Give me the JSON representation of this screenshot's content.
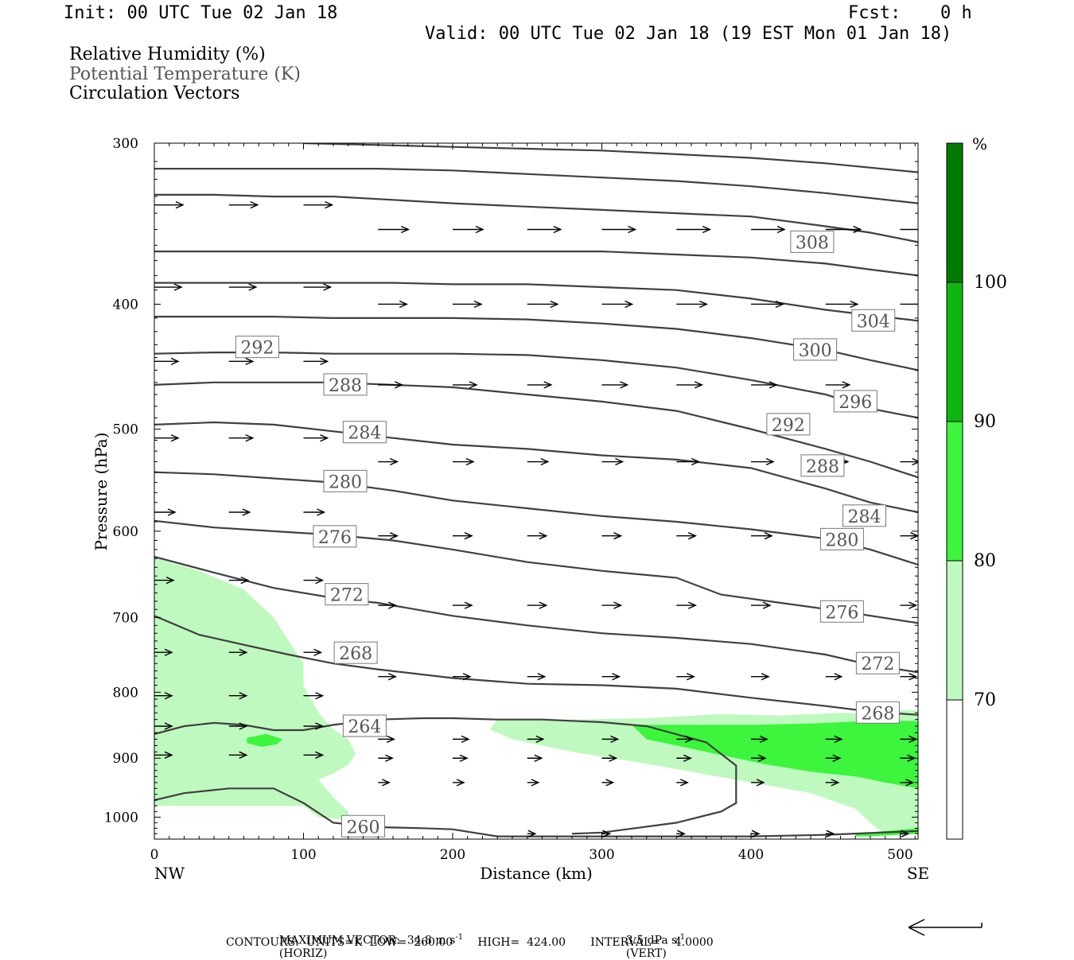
{
  "header": {
    "init": "Init: 00 UTC Tue 02 Jan 18",
    "fcst_label": "Fcst:",
    "fcst_value": "0 h",
    "valid": "Valid: 00 UTC Tue 02 Jan 18 (19 EST Mon 01 Jan 18)"
  },
  "fields": {
    "rh": "Relative Humidity (%)",
    "theta": "Potential Temperature (K)",
    "vectors": "Circulation Vectors"
  },
  "colors": {
    "rh_70_80": "#bff9bf",
    "rh_80_90": "#3cf53c",
    "rh_90_100": "#0fb60f",
    "rh_100_plus": "#007a00",
    "contour": "#404040",
    "vector": "#000000"
  },
  "chart_data": {
    "type": "cross-section",
    "xlabel": "Distance (km)",
    "ylabel": "Pressure (hPa)",
    "x_ticks": [
      0,
      100,
      200,
      300,
      400,
      500
    ],
    "y_ticks": [
      300,
      400,
      500,
      600,
      700,
      800,
      900,
      1000
    ],
    "xlim": [
      0,
      512
    ],
    "ylim": [
      300,
      1040
    ],
    "y_scale": "log",
    "x_end_labels": {
      "left": "NW",
      "right": "SE"
    },
    "colorbar": {
      "unit": "%",
      "levels": [
        70,
        80,
        90,
        100
      ],
      "level_labels": [
        "70",
        "80",
        "90",
        "100"
      ]
    },
    "theta_contours": [
      {
        "label": "260",
        "x": [
          0,
          20,
          50,
          80,
          100,
          120,
          150,
          180,
          200,
          230,
          260,
          300,
          350,
          400,
          450,
          512
        ],
        "p": [
          970,
          958,
          950,
          950,
          975,
          1010,
          1018,
          1020,
          1022,
          1035,
          1035,
          1035,
          1035,
          1035,
          1032,
          1025
        ]
      },
      {
        "label": "264",
        "x": [
          0,
          20,
          40,
          60,
          80,
          100,
          120,
          150,
          180,
          200,
          230,
          260,
          300,
          330,
          370,
          390,
          390,
          380,
          350,
          300,
          280
        ],
        "p": [
          862,
          850,
          845,
          848,
          856,
          856,
          848,
          840,
          838,
          838,
          840,
          840,
          844,
          850,
          875,
          912,
          975,
          990,
          1010,
          1028,
          1030
        ]
      },
      {
        "label": "268",
        "x": [
          0,
          30,
          60,
          90,
          120,
          150,
          200,
          250,
          300,
          350,
          400,
          450,
          480,
          512
        ],
        "p": [
          698,
          722,
          735,
          748,
          760,
          768,
          780,
          788,
          790,
          795,
          808,
          820,
          828,
          833
        ]
      },
      {
        "label": "272",
        "x": [
          0,
          40,
          80,
          120,
          150,
          200,
          250,
          300,
          350,
          400,
          450,
          480,
          512
        ],
        "p": [
          628,
          646,
          664,
          676,
          682,
          698,
          710,
          720,
          726,
          734,
          748,
          762,
          772
        ]
      },
      {
        "label": "276",
        "x": [
          0,
          40,
          80,
          120,
          160,
          200,
          250,
          300,
          350,
          380,
          420,
          460,
          512
        ],
        "p": [
          589,
          596,
          600,
          604,
          610,
          620,
          634,
          644,
          652,
          672,
          682,
          692,
          707
        ]
      },
      {
        "label": "280",
        "x": [
          0,
          40,
          80,
          120,
          160,
          200,
          250,
          300,
          350,
          400,
          450,
          480,
          512
        ],
        "p": [
          540,
          542,
          546,
          550,
          558,
          568,
          576,
          584,
          590,
          598,
          608,
          620,
          637
        ]
      },
      {
        "label": "284",
        "x": [
          0,
          40,
          80,
          120,
          160,
          200,
          250,
          300,
          350,
          400,
          450,
          480,
          512
        ],
        "p": [
          496,
          494,
          496,
          502,
          508,
          514,
          518,
          524,
          528,
          536,
          556,
          570,
          580
        ]
      },
      {
        "label": "288",
        "x": [
          0,
          40,
          80,
          120,
          160,
          200,
          250,
          300,
          350,
          400,
          450,
          480,
          512
        ],
        "p": [
          462,
          460,
          460,
          460,
          462,
          464,
          470,
          476,
          484,
          500,
          518,
          530,
          545
        ]
      },
      {
        "label": "292",
        "x": [
          0,
          40,
          80,
          120,
          160,
          200,
          250,
          300,
          350,
          400,
          450,
          480,
          512
        ],
        "p": [
          437,
          436,
          436,
          437,
          437,
          437,
          438,
          442,
          448,
          458,
          470,
          482,
          490
        ]
      },
      {
        "label": "296",
        "x": [
          0,
          40,
          80,
          120,
          160,
          200,
          250,
          300,
          350,
          400,
          450,
          480,
          512
        ],
        "p": [
          409,
          409,
          409,
          410,
          410,
          410,
          411,
          414,
          418,
          425,
          434,
          442,
          450
        ]
      },
      {
        "label": "300",
        "x": [
          0,
          40,
          80,
          120,
          160,
          200,
          250,
          300,
          350,
          400,
          450,
          480,
          512
        ],
        "p": [
          385,
          385,
          385,
          385,
          385,
          386,
          386,
          388,
          390,
          396,
          404,
          408,
          412
        ]
      },
      {
        "label": "304",
        "x": [
          0,
          40,
          80,
          120,
          160,
          200,
          250,
          300,
          350,
          400,
          450,
          480,
          512
        ],
        "p": [
          364,
          364,
          364,
          364,
          364,
          364,
          364,
          364,
          366,
          368,
          372,
          376,
          380
        ]
      },
      {
        "label": "308",
        "x": [
          0,
          40,
          80,
          120,
          160,
          200,
          250,
          300,
          350,
          400,
          450,
          480,
          512
        ],
        "p": [
          329,
          329,
          330,
          330,
          332,
          334,
          336,
          338,
          340,
          342,
          348,
          352,
          358
        ]
      },
      {
        "label": "",
        "x": [
          0,
          60,
          100,
          150,
          200,
          250,
          300,
          350,
          400,
          450,
          512
        ],
        "p": [
          314,
          314,
          314,
          314,
          315,
          317,
          319,
          321,
          324,
          328,
          334
        ]
      },
      {
        "label": "",
        "x": [
          100,
          150,
          200,
          250,
          300,
          350,
          400,
          450,
          512
        ],
        "p": [
          300,
          301,
          302,
          303,
          304,
          306,
          308,
          311,
          316
        ]
      }
    ],
    "theta_labels": [
      {
        "text": "308",
        "x": 441,
        "p": 358
      },
      {
        "text": "304",
        "x": 482,
        "p": 412
      },
      {
        "text": "300",
        "x": 443,
        "p": 434
      },
      {
        "text": "296",
        "x": 470,
        "p": 476
      },
      {
        "text": "292",
        "x": 69,
        "p": 432
      },
      {
        "text": "292",
        "x": 425,
        "p": 496
      },
      {
        "text": "288",
        "x": 128,
        "p": 462
      },
      {
        "text": "288",
        "x": 448,
        "p": 534
      },
      {
        "text": "284",
        "x": 141,
        "p": 503
      },
      {
        "text": "284",
        "x": 476,
        "p": 584
      },
      {
        "text": "280",
        "x": 128,
        "p": 549
      },
      {
        "text": "280",
        "x": 461,
        "p": 609
      },
      {
        "text": "276",
        "x": 121,
        "p": 606
      },
      {
        "text": "276",
        "x": 461,
        "p": 693
      },
      {
        "text": "272",
        "x": 129,
        "p": 672
      },
      {
        "text": "272",
        "x": 485,
        "p": 760
      },
      {
        "text": "268",
        "x": 135,
        "p": 746
      },
      {
        "text": "268",
        "x": 485,
        "p": 830
      },
      {
        "text": "264",
        "x": 141,
        "p": 850
      },
      {
        "text": "260",
        "x": 140,
        "p": 1017
      }
    ],
    "rh_regions": [
      {
        "band": "70-80",
        "x": [
          0,
          10,
          30,
          60,
          80,
          100,
          100,
          110,
          120,
          130,
          135,
          130,
          120,
          110,
          120,
          130,
          130,
          110,
          100,
          0
        ],
        "p": [
          628,
          634,
          644,
          666,
          700,
          760,
          790,
          830,
          855,
          870,
          893,
          910,
          925,
          935,
          965,
          990,
          1005,
          1000,
          980,
          980
        ]
      },
      {
        "band": "70-80",
        "x": [
          230,
          280,
          330,
          380,
          420,
          460,
          480,
          490,
          512,
          512,
          490,
          482,
          470,
          440,
          400,
          360,
          320,
          280,
          240,
          225
        ],
        "p": [
          840,
          840,
          838,
          832,
          834,
          830,
          832,
          826,
          826,
          1030,
          1030,
          1015,
          985,
          958,
          940,
          922,
          905,
          890,
          870,
          855
        ]
      },
      {
        "band": "80-90",
        "x": [
          320,
          360,
          400,
          440,
          480,
          512,
          512,
          490,
          470,
          440,
          410,
          380,
          350,
          330
        ],
        "p": [
          848,
          848,
          848,
          846,
          842,
          842,
          950,
          940,
          930,
          922,
          910,
          895,
          880,
          870
        ]
      },
      {
        "band": "80-90",
        "x": [
          62,
          75,
          86,
          82,
          72,
          62
        ],
        "p": [
          868,
          862,
          870,
          878,
          882,
          876
        ]
      },
      {
        "band": "80-90",
        "x": [
          470,
          512,
          512,
          480,
          470
        ],
        "p": [
          1030,
          1020,
          1030,
          1035,
          1035
        ]
      }
    ],
    "vector_rows": [
      {
        "p": 335,
        "x": [
          0,
          50,
          100
        ],
        "lengths": [
          36,
          36,
          36
        ]
      },
      {
        "p": 350,
        "x": [
          150,
          200,
          250,
          300,
          350,
          400,
          450,
          500
        ],
        "lengths": [
          38,
          38,
          42,
          42,
          42,
          42,
          44,
          40
        ]
      },
      {
        "p": 388,
        "x": [
          0,
          50,
          100
        ],
        "lengths": [
          34,
          34,
          34
        ]
      },
      {
        "p": 400,
        "x": [
          150,
          200,
          250,
          300,
          350,
          400,
          450,
          500
        ],
        "lengths": [
          36,
          36,
          38,
          38,
          38,
          40,
          40,
          36
        ]
      },
      {
        "p": 443,
        "x": [
          0,
          50,
          100
        ],
        "lengths": [
          30,
          30,
          30
        ]
      },
      {
        "p": 462,
        "x": [
          150,
          200,
          250,
          300,
          350,
          400,
          450
        ],
        "lengths": [
          30,
          30,
          30,
          32,
          32,
          32,
          30
        ]
      },
      {
        "p": 508,
        "x": [
          0,
          50,
          100
        ],
        "lengths": [
          30,
          30,
          30
        ]
      },
      {
        "p": 530,
        "x": [
          150,
          200,
          250,
          300,
          350,
          400,
          450,
          500
        ],
        "lengths": [
          24,
          26,
          26,
          26,
          28,
          28,
          28,
          24
        ]
      },
      {
        "p": 580,
        "x": [
          0,
          50,
          100
        ],
        "lengths": [
          26,
          26,
          26
        ]
      },
      {
        "p": 605,
        "x": [
          150,
          200,
          250,
          300,
          350,
          400,
          450,
          500
        ],
        "lengths": [
          24,
          24,
          24,
          24,
          24,
          26,
          24,
          22
        ]
      },
      {
        "p": 655,
        "x": [
          0,
          50,
          100
        ],
        "lengths": [
          24,
          24,
          24
        ]
      },
      {
        "p": 685,
        "x": [
          150,
          200,
          250,
          300,
          350,
          400,
          450,
          500
        ],
        "lengths": [
          22,
          24,
          24,
          24,
          24,
          24,
          22,
          20
        ]
      },
      {
        "p": 745,
        "x": [
          0,
          50,
          100
        ],
        "lengths": [
          22,
          22,
          22
        ]
      },
      {
        "p": 778,
        "x": [
          150,
          200,
          250,
          300,
          350,
          400,
          450,
          500
        ],
        "lengths": [
          22,
          22,
          22,
          22,
          22,
          22,
          20,
          20
        ]
      },
      {
        "p": 805,
        "x": [
          0,
          50,
          100
        ],
        "lengths": [
          22,
          22,
          24
        ]
      },
      {
        "p": 850,
        "x": [
          0,
          50,
          100
        ],
        "lengths": [
          22,
          22,
          24
        ]
      },
      {
        "p": 870,
        "x": [
          150,
          200,
          250,
          300,
          350,
          400,
          450,
          500
        ],
        "lengths": [
          20,
          20,
          20,
          20,
          20,
          20,
          20,
          20
        ]
      },
      {
        "p": 895,
        "x": [
          0,
          50,
          100
        ],
        "lengths": [
          22,
          22,
          24
        ]
      },
      {
        "p": 900,
        "x": [
          150,
          200,
          250,
          300,
          350,
          400,
          450,
          500
        ],
        "lengths": [
          18,
          18,
          18,
          18,
          18,
          18,
          18,
          18
        ]
      },
      {
        "p": 940,
        "x": [
          150,
          200,
          250,
          300,
          350,
          400,
          450,
          500
        ],
        "lengths": [
          14,
          14,
          14,
          14,
          14,
          16,
          16,
          16
        ]
      },
      {
        "p": 1030,
        "x": [
          250,
          300,
          350,
          400,
          450,
          500
        ],
        "lengths": [
          10,
          10,
          10,
          10,
          10,
          10
        ]
      }
    ]
  },
  "footer": {
    "max_vector": "MAXIMUM VECTOR:  34.8 m s",
    "horiz": "(HORIZ)",
    "vert_value": "3.5 dPa s",
    "vert": "(VERT)",
    "sup": "-1",
    "contours": "CONTOURS:  UNITS=K  LOW=  260.00       HIGH=  424.00       INTERVAL=    4.0000"
  }
}
